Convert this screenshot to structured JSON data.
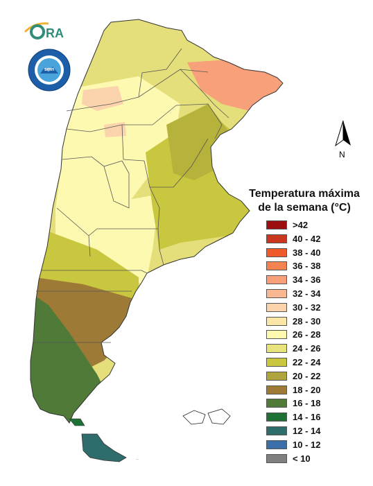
{
  "logo": {
    "text": "ORA",
    "name": "ora-logo"
  },
  "seal": {
    "lettering": "SERVICIO METEOROLÓGICO NACIONAL · ARGENTINA · smn"
  },
  "north": {
    "label": "N"
  },
  "legend": {
    "title_line1": "Temperatura máxima",
    "title_line2": "de la semana (°C)",
    "items": [
      {
        "label": ">42",
        "color": "#9b0f0f"
      },
      {
        "label": "40 - 42",
        "color": "#c9381e"
      },
      {
        "label": "38 - 40",
        "color": "#f15a2b"
      },
      {
        "label": "36 - 38",
        "color": "#f5834f"
      },
      {
        "label": "34 - 36",
        "color": "#f7a079"
      },
      {
        "label": "32 - 34",
        "color": "#f9b792"
      },
      {
        "label": "30 - 32",
        "color": "#fbd3ac"
      },
      {
        "label": "28 - 30",
        "color": "#fde7a6"
      },
      {
        "label": "26 - 28",
        "color": "#fdf9b0"
      },
      {
        "label": "24 - 26",
        "color": "#e7e47d"
      },
      {
        "label": "22 - 24",
        "color": "#c9c63f"
      },
      {
        "label": "20 - 22",
        "color": "#b0a43c"
      },
      {
        "label": "18 - 20",
        "color": "#9d7a36"
      },
      {
        "label": "16 - 18",
        "color": "#4f7a38"
      },
      {
        "label": "14 - 16",
        "color": "#1e7035"
      },
      {
        "label": "12 - 14",
        "color": "#2e6d6b"
      },
      {
        "label": "10 - 12",
        "color": "#3a6fa8"
      },
      {
        "label": "< 10",
        "color": "#808080"
      }
    ]
  },
  "map_colors": {
    "north_zone": "#e4df7a",
    "hot_northeast": "#f7a079",
    "hot_patches": "#fbd3ac",
    "central_pale": "#fdf9b0",
    "olive": "#c9c63f",
    "brown": "#9d7a36",
    "dark_brown": "#8a6a33",
    "green": "#4f7a38",
    "tierra_del_fuego": "#2e6d6b",
    "border": "#333333"
  }
}
